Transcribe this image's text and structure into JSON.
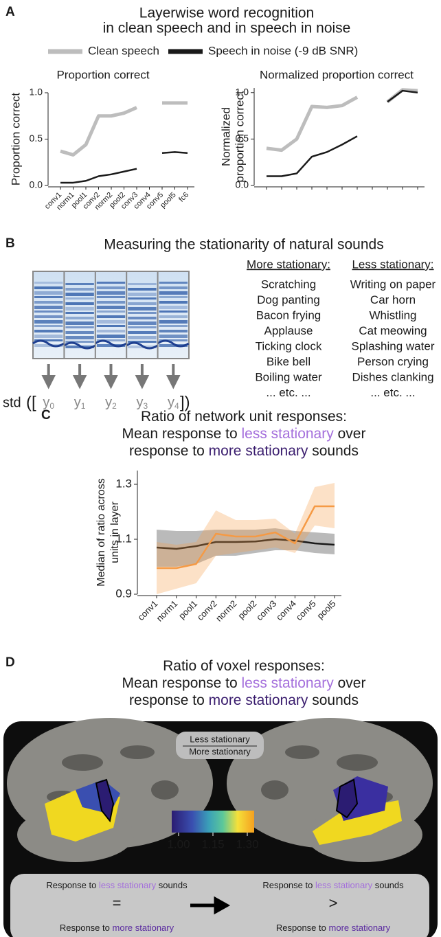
{
  "panel_labels": [
    "A",
    "B",
    "C",
    "D"
  ],
  "panel_a": {
    "title": [
      "Layerwise word recognition",
      "in clean speech and in speech in noise"
    ]
  },
  "chart_data": [
    {
      "type": "line",
      "title": "Proportion correct",
      "ylabel": "Proportion correct",
      "categories": [
        "conv1",
        "norm1",
        "pool1",
        "conv2",
        "norm2",
        "pool2",
        "conv3",
        "conv4",
        "conv5",
        "pool5",
        "fc6"
      ],
      "series": [
        {
          "name": "Clean speech",
          "color": "#bdbdbd",
          "values": [
            0.37,
            0.33,
            0.44,
            0.75,
            0.75,
            0.78,
            0.84,
            null,
            0.89,
            0.89,
            0.89
          ]
        },
        {
          "name": "Speech in noise (-9 dB SNR)",
          "color": "#1a1a1a",
          "values": [
            0.03,
            0.03,
            0.05,
            0.1,
            0.12,
            0.15,
            0.18,
            null,
            0.35,
            0.36,
            0.35
          ]
        }
      ],
      "ylim": [
        0,
        1
      ],
      "yticks": [
        {
          "value": 0,
          "label": "0.0"
        },
        0.5,
        {
          "value": 1,
          "label": "1.0"
        }
      ]
    },
    {
      "type": "line",
      "title": "Normalized proportion correct",
      "ylabel": [
        "Normalized",
        "proportion correct"
      ],
      "categories": [
        null,
        null,
        null,
        null,
        null,
        null,
        null,
        null,
        null,
        null,
        null
      ],
      "series": [
        {
          "color": "#bdbdbd",
          "values": [
            0.4,
            0.38,
            0.5,
            0.85,
            0.84,
            0.86,
            0.95,
            null,
            0.9,
            1.03,
            1.02
          ]
        },
        {
          "color": "#1a1a1a",
          "values": [
            0.1,
            0.1,
            0.13,
            0.31,
            0.36,
            0.44,
            0.53,
            null,
            0.9,
            1.02,
            1.0
          ]
        }
      ],
      "ylim": [
        0,
        1.05
      ],
      "yticks": [
        {
          "value": 0,
          "label": "0.0"
        },
        0.5,
        {
          "value": 1,
          "label": "1.0"
        }
      ]
    },
    {
      "type": "line",
      "title": [
        [
          {
            "text": "Ratio of network unit responses:"
          }
        ],
        [
          {
            "text": "Mean response to"
          },
          {
            "text": "less stationary",
            "color": "#a46fdc"
          },
          {
            "text": "over"
          }
        ],
        [
          {
            "text": "response to"
          },
          {
            "text": "more stationary",
            "color": "#3a1d6e"
          },
          {
            "text": "sounds"
          }
        ]
      ],
      "ylabel": [
        "Median of ratio across",
        "units in layer"
      ],
      "categories": [
        "conv1",
        "norm1",
        "pool1",
        "conv2",
        "norm2",
        "pool2",
        "conv3",
        "conv4",
        "conv5",
        "pool5"
      ],
      "series": [
        {
          "color": "#1a1a1a",
          "values": [
            1.07,
            1.065,
            1.075,
            1.09,
            1.09,
            1.092,
            1.1,
            1.095,
            1.085,
            1.08
          ],
          "lower": [
            1.0,
            1.0,
            1.01,
            1.04,
            1.04,
            1.05,
            1.06,
            1.06,
            1.05,
            1.045
          ],
          "upper": [
            1.135,
            1.13,
            1.13,
            1.135,
            1.135,
            1.135,
            1.14,
            1.13,
            1.125,
            1.12
          ]
        },
        {
          "color": "#f59a45",
          "values": [
            0.995,
            0.995,
            1.01,
            1.12,
            1.11,
            1.11,
            1.125,
            1.085,
            1.22,
            1.22
          ],
          "lower": [
            0.9,
            0.92,
            0.94,
            1.04,
            1.05,
            1.06,
            1.07,
            1.05,
            1.15,
            1.14
          ],
          "upper": [
            1.09,
            1.08,
            1.09,
            1.205,
            1.17,
            1.17,
            1.175,
            1.12,
            1.29,
            1.305
          ]
        }
      ],
      "ylim": [
        0.9,
        1.35
      ],
      "yticks": [
        0.9,
        1.1,
        1.3
      ]
    }
  ],
  "panel_b": {
    "title": "Measuring the stationarity of natural sounds",
    "expression": {
      "fn": "std",
      "open": "([",
      "close": "])",
      "terms": [
        {
          "main": "y",
          "sub": "0"
        },
        {
          "main": "y",
          "sub": "1"
        },
        {
          "main": "y",
          "sub": "2"
        },
        {
          "main": "y",
          "sub": "3"
        },
        {
          "main": "y",
          "sub": "4"
        }
      ]
    },
    "more_stationary": {
      "heading": "More stationary:",
      "color": "#3a1d6e",
      "items": [
        "Scratching",
        "Dog panting",
        "Bacon frying",
        "Applause",
        "Ticking clock",
        "Bike bell",
        "Boiling water",
        "... etc. ..."
      ]
    },
    "less_stationary": {
      "heading": "Less stationary:",
      "color": "#a46fdc",
      "items": [
        "Writing on paper",
        "Car horn",
        "Whistling",
        "Cat meowing",
        "Splashing water",
        "Person crying",
        "Dishes clanking",
        "... etc. ..."
      ]
    }
  },
  "panel_d": {
    "title": [
      [
        {
          "text": "Ratio of voxel responses:"
        }
      ],
      [
        {
          "text": "Mean response to"
        },
        {
          "text": "less stationary",
          "color": "#a46fdc"
        },
        {
          "text": "over"
        }
      ],
      [
        {
          "text": "response to"
        },
        {
          "text": "more stationary",
          "color": "#3a1d6e"
        },
        {
          "text": "sounds"
        }
      ]
    ],
    "legend": [
      {
        "text": "Less stationary",
        "color": "#a46fdc"
      },
      {
        "text": "More stationary",
        "color": "#2a1550"
      }
    ],
    "colorbar": {
      "lim": [
        0.97,
        1.33
      ],
      "ticks": [
        {
          "value": 1,
          "label": "1.00"
        },
        1.15,
        {
          "value": 1.3,
          "label": "1.30"
        }
      ]
    },
    "comparison": [
      {
        "top": [
          {
            "text": "Response to"
          },
          {
            "text": "less stationary",
            "color": "#a46fdc"
          },
          {
            "text": "sounds"
          }
        ],
        "symbol": "=",
        "bottom": [
          {
            "text": "Response to"
          },
          {
            "text": "more stationary",
            "color": "#5a2aa0"
          }
        ]
      },
      {
        "top": [
          {
            "text": "Response to"
          },
          {
            "text": "less stationary",
            "color": "#a46fdc"
          },
          {
            "text": "sounds"
          }
        ],
        "symbol": ">",
        "bottom": [
          {
            "text": "Response to"
          },
          {
            "text": "more stationary",
            "color": "#5a2aa0"
          }
        ]
      }
    ]
  }
}
